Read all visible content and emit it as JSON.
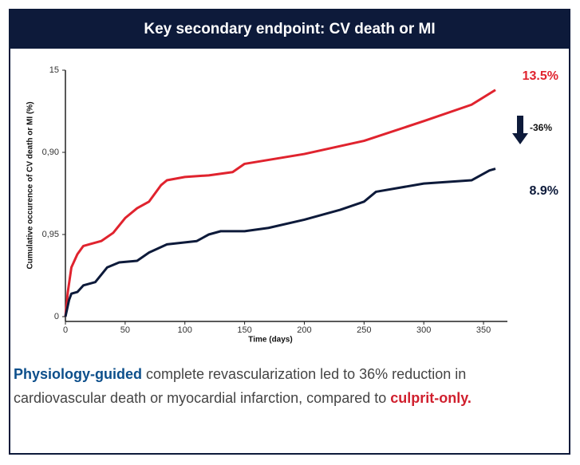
{
  "header": {
    "title": "Key secondary endpoint: CV death or MI"
  },
  "chart_data": {
    "type": "line",
    "xlabel": "Time (days)",
    "ylabel": "Cumulative occurence of CV death or MI (%)",
    "xlim": [
      0,
      370
    ],
    "xticks": [
      0,
      50,
      100,
      150,
      200,
      250,
      300,
      350
    ],
    "ylim": [
      0,
      15
    ],
    "yticks": [
      0,
      {
        "value": 5,
        "label": "0,95"
      },
      {
        "value": 10,
        "label": "0,90"
      },
      15
    ],
    "series": [
      {
        "color": "#e0232e",
        "x": [
          0,
          2,
          5,
          10,
          15,
          20,
          30,
          40,
          50,
          60,
          70,
          80,
          85,
          100,
          120,
          140,
          150,
          200,
          250,
          300,
          340,
          360
        ],
        "values": [
          0,
          1.5,
          3,
          3.8,
          4.3,
          4.4,
          4.6,
          5.1,
          6.0,
          6.6,
          7.0,
          8.0,
          8.3,
          8.5,
          8.6,
          8.8,
          9.3,
          9.9,
          10.7,
          11.9,
          12.9,
          13.8
        ],
        "end_label": "13.5%"
      },
      {
        "color": "#0d1a3a",
        "x": [
          0,
          3,
          5,
          10,
          15,
          25,
          35,
          45,
          60,
          70,
          85,
          110,
          120,
          130,
          150,
          170,
          200,
          230,
          250,
          260,
          300,
          340,
          355,
          360
        ],
        "values": [
          0,
          1,
          1.4,
          1.5,
          1.9,
          2.1,
          3.0,
          3.3,
          3.4,
          3.9,
          4.4,
          4.6,
          5.0,
          5.2,
          5.2,
          5.4,
          5.9,
          6.5,
          7.0,
          7.6,
          8.1,
          8.3,
          8.9,
          9.0
        ],
        "end_label": "8.9%"
      }
    ],
    "annotation": "-36%"
  },
  "caption": {
    "lead": "Physiology-guided",
    "middle": " complete revascularization led to 36% reduction in cardiovascular death or myocardial infarction, compared to ",
    "tail": "culprit-only."
  }
}
